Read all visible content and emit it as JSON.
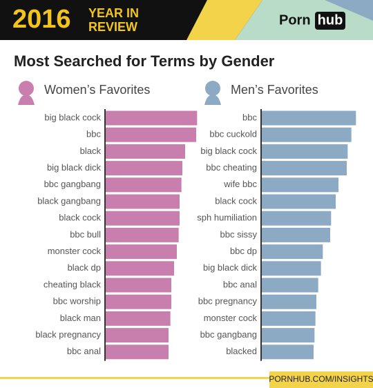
{
  "header": {
    "year": "2016",
    "tagline": [
      "YEAR IN",
      "REVIEW"
    ],
    "logo": [
      "Porn",
      "hub"
    ]
  },
  "title": "Most Searched for Terms by Gender",
  "chart_data": [
    {
      "type": "bar",
      "subtitle": "Women’s Favorites",
      "color": "#c97fae",
      "xlim": [
        0,
        105
      ],
      "categories": [
        "big black cock",
        "bbc",
        "black",
        "big black dick",
        "bbc gangbang",
        "black gangbang",
        "black cock",
        "bbc bull",
        "monster cock",
        "black dp",
        "cheating black",
        "bbc worship",
        "black man",
        "black pregnancy",
        "bbc anal"
      ],
      "values": [
        100,
        99,
        87,
        84,
        83,
        81,
        81,
        80,
        78,
        75,
        72,
        72,
        71,
        69,
        69
      ]
    },
    {
      "type": "bar",
      "subtitle": "Men’s Favorites",
      "color": "#8caac3",
      "xlim": [
        0,
        105
      ],
      "categories": [
        "bbc",
        "bbc cuckold",
        "big black cock",
        "bbc cheating",
        "wife bbc",
        "black cock",
        "sph humiliation",
        "bbc sissy",
        "bbc dp",
        "big black dick",
        "bbc anal",
        "bbc pregnancy",
        "monster cock",
        "bbc gangbang",
        "blacked"
      ],
      "values": [
        103,
        98,
        94,
        93,
        84,
        81,
        76,
        75,
        67,
        65,
        62,
        60,
        59,
        58,
        57
      ]
    }
  ],
  "footer": "PORNHUB.COM/INSIGHTS"
}
